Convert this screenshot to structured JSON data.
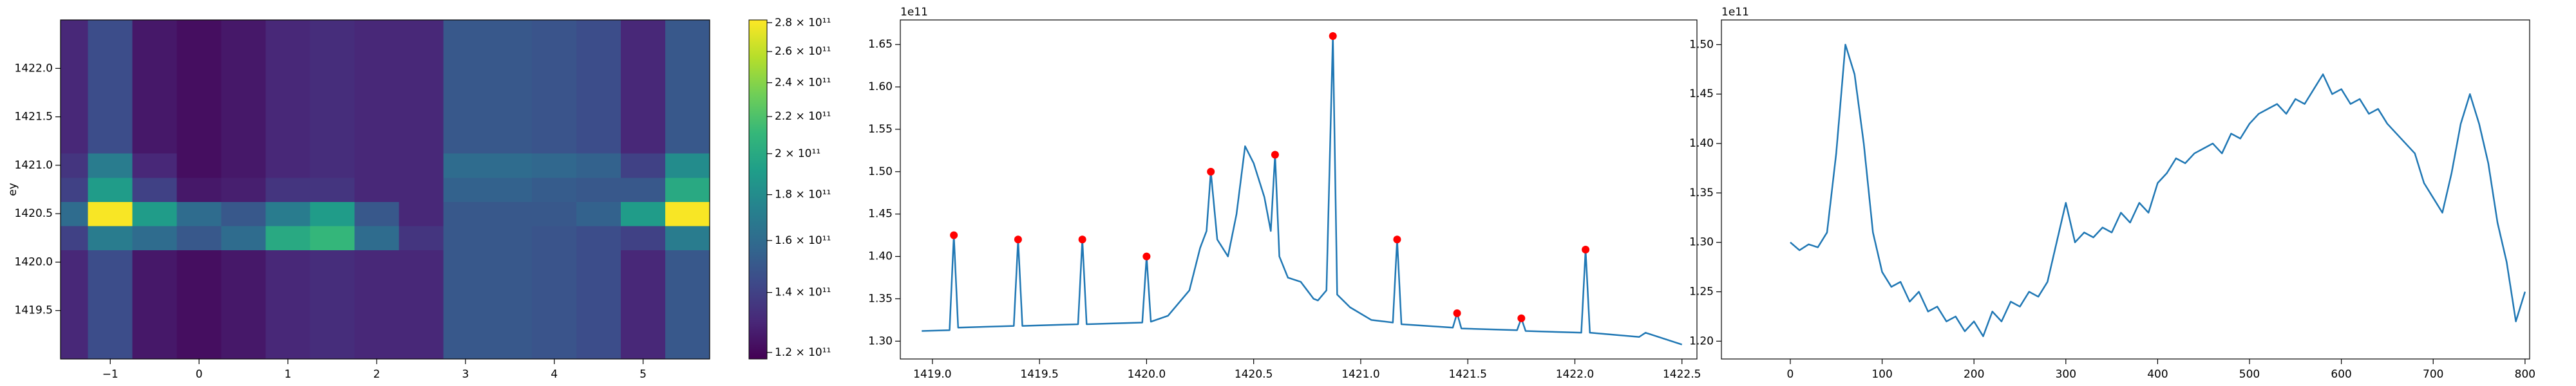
{
  "chart_data": [
    {
      "type": "heatmap",
      "ylabel": "ey",
      "colormap": "viridis",
      "xlim": [
        -1.56,
        5.75
      ],
      "ylim": [
        1419.0,
        1422.5
      ],
      "xticks": [
        {
          "value": -1,
          "label": "−1"
        },
        0,
        1,
        2,
        3,
        4,
        5
      ],
      "yticks": [
        1419.5,
        {
          "value": 1420,
          "label": "1420.0"
        },
        1420.5,
        {
          "value": 1421,
          "label": "1421.0"
        },
        1421.5,
        {
          "value": 1422,
          "label": "1422.0"
        }
      ],
      "x": [
        -1.5,
        -1.0,
        -0.5,
        0,
        0.5,
        1.0,
        1.5,
        2.0,
        2.5,
        3.0,
        3.5,
        4.0,
        4.5,
        5.0,
        5.5
      ],
      "y": [
        1419.0,
        1419.25,
        1419.5,
        1419.75,
        1420.0,
        1420.25,
        1420.5,
        1420.75,
        1421.0,
        1421.25,
        1421.5,
        1421.75,
        1422.0,
        1422.25,
        1422.5
      ],
      "z": [
        [
          130000000000.0,
          145000000000.0,
          125000000000.0,
          122000000000.0,
          125000000000.0,
          130000000000.0,
          132000000000.0,
          130000000000.0,
          130000000000.0,
          150000000000.0,
          150000000000.0,
          148000000000.0,
          145000000000.0,
          130000000000.0,
          150000000000.0
        ],
        [
          130000000000.0,
          145000000000.0,
          125000000000.0,
          122000000000.0,
          125000000000.0,
          130000000000.0,
          132000000000.0,
          130000000000.0,
          130000000000.0,
          150000000000.0,
          150000000000.0,
          148000000000.0,
          145000000000.0,
          130000000000.0,
          150000000000.0
        ],
        [
          130000000000.0,
          145000000000.0,
          125000000000.0,
          122000000000.0,
          125000000000.0,
          130000000000.0,
          132000000000.0,
          130000000000.0,
          130000000000.0,
          150000000000.0,
          150000000000.0,
          148000000000.0,
          145000000000.0,
          130000000000.0,
          150000000000.0
        ],
        [
          130000000000.0,
          145000000000.0,
          125000000000.0,
          122000000000.0,
          125000000000.0,
          130000000000.0,
          132000000000.0,
          130000000000.0,
          130000000000.0,
          150000000000.0,
          150000000000.0,
          148000000000.0,
          145000000000.0,
          130000000000.0,
          150000000000.0
        ],
        [
          130000000000.0,
          145000000000.0,
          125000000000.0,
          122000000000.0,
          125000000000.0,
          130000000000.0,
          132000000000.0,
          130000000000.0,
          130000000000.0,
          150000000000.0,
          150000000000.0,
          148000000000.0,
          145000000000.0,
          130000000000.0,
          150000000000.0
        ],
        [
          140000000000.0,
          170000000000.0,
          160000000000.0,
          150000000000.0,
          160000000000.0,
          200000000000.0,
          210000000000.0,
          160000000000.0,
          135000000000.0,
          150000000000.0,
          150000000000.0,
          148000000000.0,
          145000000000.0,
          140000000000.0,
          170000000000.0
        ],
        [
          160000000000.0,
          280000000000.0,
          190000000000.0,
          160000000000.0,
          150000000000.0,
          170000000000.0,
          190000000000.0,
          150000000000.0,
          130000000000.0,
          150000000000.0,
          150000000000.0,
          150000000000.0,
          155000000000.0,
          190000000000.0,
          280000000000.0
        ],
        [
          140000000000.0,
          190000000000.0,
          140000000000.0,
          125000000000.0,
          127000000000.0,
          135000000000.0,
          135000000000.0,
          130000000000.0,
          130000000000.0,
          155000000000.0,
          155000000000.0,
          152000000000.0,
          150000000000.0,
          150000000000.0,
          200000000000.0
        ],
        [
          135000000000.0,
          170000000000.0,
          130000000000.0,
          122000000000.0,
          125000000000.0,
          130000000000.0,
          132000000000.0,
          130000000000.0,
          130000000000.0,
          160000000000.0,
          160000000000.0,
          158000000000.0,
          155000000000.0,
          140000000000.0,
          180000000000.0
        ],
        [
          130000000000.0,
          145000000000.0,
          125000000000.0,
          122000000000.0,
          125000000000.0,
          130000000000.0,
          132000000000.0,
          130000000000.0,
          130000000000.0,
          150000000000.0,
          150000000000.0,
          148000000000.0,
          145000000000.0,
          130000000000.0,
          150000000000.0
        ],
        [
          130000000000.0,
          145000000000.0,
          125000000000.0,
          122000000000.0,
          125000000000.0,
          130000000000.0,
          132000000000.0,
          130000000000.0,
          130000000000.0,
          150000000000.0,
          150000000000.0,
          148000000000.0,
          145000000000.0,
          130000000000.0,
          150000000000.0
        ],
        [
          130000000000.0,
          145000000000.0,
          125000000000.0,
          122000000000.0,
          125000000000.0,
          130000000000.0,
          132000000000.0,
          130000000000.0,
          130000000000.0,
          150000000000.0,
          150000000000.0,
          148000000000.0,
          145000000000.0,
          130000000000.0,
          150000000000.0
        ],
        [
          130000000000.0,
          145000000000.0,
          125000000000.0,
          122000000000.0,
          125000000000.0,
          130000000000.0,
          132000000000.0,
          130000000000.0,
          130000000000.0,
          150000000000.0,
          150000000000.0,
          148000000000.0,
          145000000000.0,
          130000000000.0,
          150000000000.0
        ],
        [
          130000000000.0,
          145000000000.0,
          125000000000.0,
          122000000000.0,
          125000000000.0,
          130000000000.0,
          132000000000.0,
          130000000000.0,
          130000000000.0,
          150000000000.0,
          150000000000.0,
          148000000000.0,
          145000000000.0,
          130000000000.0,
          150000000000.0
        ],
        [
          130000000000.0,
          145000000000.0,
          125000000000.0,
          122000000000.0,
          125000000000.0,
          130000000000.0,
          132000000000.0,
          130000000000.0,
          130000000000.0,
          150000000000.0,
          150000000000.0,
          148000000000.0,
          145000000000.0,
          130000000000.0,
          150000000000.0
        ]
      ],
      "colorbar": {
        "scale": "log",
        "clim": [
          118000000000.0,
          282000000000.0
        ],
        "ticks": [
          {
            "value": 120000000000.0,
            "label": "1.2 × 10¹¹"
          },
          {
            "value": 140000000000.0,
            "label": "1.4 × 10¹¹"
          },
          {
            "value": 160000000000.0,
            "label": "1.6 × 10¹¹"
          },
          {
            "value": 180000000000.0,
            "label": "1.8 × 10¹¹"
          },
          {
            "value": 200000000000.0,
            "label": "2 × 10¹¹"
          },
          {
            "value": 220000000000.0,
            "label": "2.2 × 10¹¹"
          },
          {
            "value": 240000000000.0,
            "label": "2.4 × 10¹¹"
          },
          {
            "value": 260000000000.0,
            "label": "2.6 × 10¹¹"
          },
          {
            "value": 280000000000.0,
            "label": "2.8 × 10¹¹"
          }
        ]
      }
    },
    {
      "type": "line",
      "y_offset_text": "1e11",
      "xlim": [
        1418.85,
        1422.57
      ],
      "ylim": [
        127900000000.0,
        167900000000.0
      ],
      "xticks": [
        {
          "value": 1419,
          "label": "1419.0"
        },
        1419.5,
        {
          "value": 1420,
          "label": "1420.0"
        },
        1420.5,
        {
          "value": 1421,
          "label": "1421.0"
        },
        1421.5,
        {
          "value": 1422,
          "label": "1422.0"
        },
        1422.5
      ],
      "yticks": [
        {
          "value": 130000000000.0,
          "label": "1.30"
        },
        {
          "value": 135000000000.0,
          "label": "1.35"
        },
        {
          "value": 140000000000.0,
          "label": "1.40"
        },
        {
          "value": 145000000000.0,
          "label": "1.45"
        },
        {
          "value": 150000000000.0,
          "label": "1.50"
        },
        {
          "value": 155000000000.0,
          "label": "1.55"
        },
        {
          "value": 160000000000.0,
          "label": "1.60"
        },
        {
          "value": 165000000000.0,
          "label": "1.65"
        }
      ],
      "series": [
        {
          "style": "line",
          "color": "#1f77b4",
          "x": [
            1418.95,
            1419.08,
            1419.1,
            1419.12,
            1419.38,
            1419.4,
            1419.42,
            1419.68,
            1419.7,
            1419.72,
            1419.98,
            1420.0,
            1420.02,
            1420.1,
            1420.2,
            1420.25,
            1420.28,
            1420.3,
            1420.33,
            1420.38,
            1420.42,
            1420.46,
            1420.5,
            1420.55,
            1420.58,
            1420.6,
            1420.62,
            1420.66,
            1420.72,
            1420.78,
            1420.8,
            1420.84,
            1420.87,
            1420.89,
            1420.95,
            1421.05,
            1421.15,
            1421.17,
            1421.19,
            1421.43,
            1421.45,
            1421.47,
            1421.73,
            1421.75,
            1421.77,
            1422.03,
            1422.05,
            1422.07,
            1422.3,
            1422.33,
            1422.5
          ],
          "values": [
            131200000000.0,
            131300000000.0,
            142500000000.0,
            131600000000.0,
            131800000000.0,
            142000000000.0,
            131800000000.0,
            132000000000.0,
            142000000000.0,
            132000000000.0,
            132200000000.0,
            140000000000.0,
            132300000000.0,
            133000000000.0,
            136000000000.0,
            141000000000.0,
            143000000000.0,
            150000000000.0,
            142000000000.0,
            140000000000.0,
            145000000000.0,
            153000000000.0,
            151000000000.0,
            147000000000.0,
            143000000000.0,
            152000000000.0,
            140000000000.0,
            137500000000.0,
            137000000000.0,
            135000000000.0,
            134800000000.0,
            136000000000.0,
            166000000000.0,
            135500000000.0,
            134000000000.0,
            132500000000.0,
            132200000000.0,
            142000000000.0,
            132000000000.0,
            131600000000.0,
            133300000000.0,
            131500000000.0,
            131300000000.0,
            132700000000.0,
            131200000000.0,
            131000000000.0,
            140800000000.0,
            131000000000.0,
            130500000000.0,
            131000000000.0,
            129600000000.0
          ]
        },
        {
          "style": "markers",
          "color": "#ff0000",
          "x": [
            1419.1,
            1419.4,
            1419.7,
            1420.0,
            1420.3,
            1420.6,
            1420.87,
            1421.17,
            1421.45,
            1421.75,
            1422.05
          ],
          "values": [
            142500000000.0,
            142000000000.0,
            142000000000.0,
            140000000000.0,
            150000000000.0,
            152000000000.0,
            166000000000.0,
            142000000000.0,
            133300000000.0,
            132700000000.0,
            140800000000.0
          ]
        }
      ]
    },
    {
      "type": "line",
      "y_offset_text": "1e11",
      "xlim": [
        -75,
        805
      ],
      "ylim": [
        118200000000.0,
        152500000000.0
      ],
      "xticks": [
        0,
        100,
        200,
        300,
        400,
        500,
        600,
        700,
        800
      ],
      "yticks": [
        {
          "value": 120000000000.0,
          "label": "1.20"
        },
        {
          "value": 125000000000.0,
          "label": "1.25"
        },
        {
          "value": 130000000000.0,
          "label": "1.30"
        },
        {
          "value": 135000000000.0,
          "label": "1.35"
        },
        {
          "value": 140000000000.0,
          "label": "1.40"
        },
        {
          "value": 145000000000.0,
          "label": "1.45"
        },
        {
          "value": 150000000000.0,
          "label": "1.50"
        }
      ],
      "series": [
        {
          "style": "line",
          "color": "#1f77b4",
          "x": [
            0,
            10,
            20,
            30,
            40,
            50,
            60,
            70,
            80,
            90,
            100,
            110,
            120,
            130,
            140,
            150,
            160,
            170,
            180,
            190,
            200,
            210,
            220,
            230,
            240,
            250,
            260,
            270,
            280,
            290,
            300,
            310,
            320,
            330,
            340,
            350,
            360,
            370,
            380,
            390,
            400,
            410,
            420,
            430,
            440,
            450,
            460,
            470,
            480,
            490,
            500,
            510,
            520,
            530,
            540,
            550,
            560,
            570,
            580,
            590,
            600,
            610,
            620,
            630,
            640,
            650,
            660,
            670,
            680,
            690,
            700,
            710,
            720,
            730,
            740,
            750,
            760,
            770,
            780,
            790,
            800
          ],
          "values": [
            130000000000.0,
            129200000000.0,
            129800000000.0,
            129500000000.0,
            131000000000.0,
            139000000000.0,
            150000000000.0,
            147000000000.0,
            140000000000.0,
            131000000000.0,
            127000000000.0,
            125500000000.0,
            126000000000.0,
            124000000000.0,
            125000000000.0,
            123000000000.0,
            123500000000.0,
            122000000000.0,
            122500000000.0,
            121000000000.0,
            122000000000.0,
            120500000000.0,
            123000000000.0,
            122000000000.0,
            124000000000.0,
            123500000000.0,
            125000000000.0,
            124500000000.0,
            126000000000.0,
            130000000000.0,
            134000000000.0,
            130000000000.0,
            131000000000.0,
            130500000000.0,
            131500000000.0,
            131000000000.0,
            133000000000.0,
            132000000000.0,
            134000000000.0,
            133000000000.0,
            136000000000.0,
            137000000000.0,
            138500000000.0,
            138000000000.0,
            139000000000.0,
            139500000000.0,
            140000000000.0,
            139000000000.0,
            141000000000.0,
            140500000000.0,
            142000000000.0,
            143000000000.0,
            143500000000.0,
            144000000000.0,
            143000000000.0,
            144500000000.0,
            144000000000.0,
            145500000000.0,
            147000000000.0,
            145000000000.0,
            145500000000.0,
            144000000000.0,
            144500000000.0,
            143000000000.0,
            143500000000.0,
            142000000000.0,
            141000000000.0,
            140000000000.0,
            139000000000.0,
            136000000000.0,
            134500000000.0,
            133000000000.0,
            137000000000.0,
            142000000000.0,
            145000000000.0,
            142000000000.0,
            138000000000.0,
            132000000000.0,
            128000000000.0,
            122000000000.0,
            125000000000.0
          ]
        }
      ]
    }
  ]
}
